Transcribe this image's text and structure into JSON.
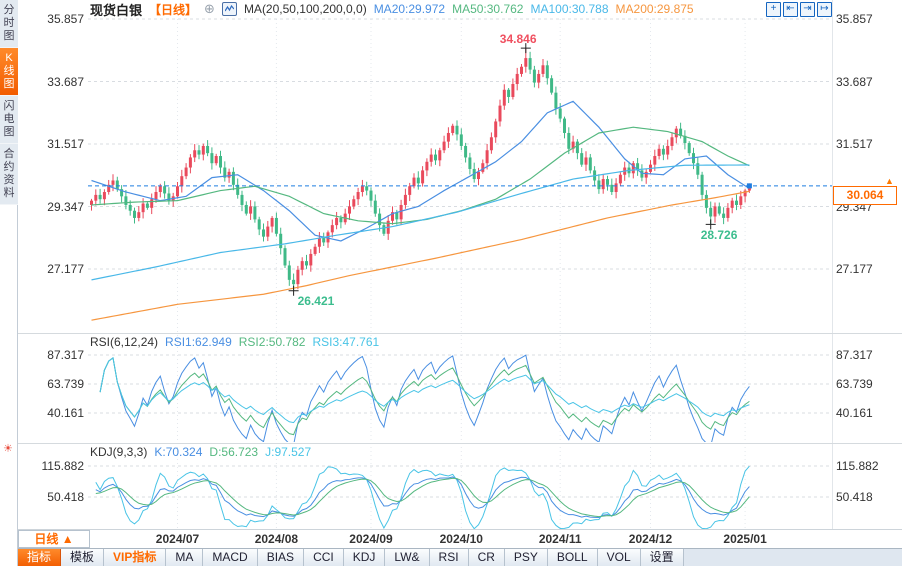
{
  "sidebar": {
    "tabs": [
      {
        "label": "分时图",
        "active": false
      },
      {
        "label": "K线图",
        "active": true
      },
      {
        "label": "闪电图",
        "active": false
      },
      {
        "label": "合约资料",
        "active": false
      }
    ],
    "sun_icon": "☀"
  },
  "header": {
    "symbol": "现货白银",
    "period": "【日线】",
    "add_icon": "⊕",
    "ma_setting": "MA(20,50,100,200,0,0)",
    "ma_values": [
      {
        "label": "MA20:29.972",
        "color": "#4a8fe2"
      },
      {
        "label": "MA50:30.762",
        "color": "#55b880"
      },
      {
        "label": "MA100:30.788",
        "color": "#49b8e8"
      },
      {
        "label": "MA200:29.875",
        "color": "#f6963f"
      }
    ],
    "tool_icons": {
      "crosshair": "+",
      "compress_left": "⇤",
      "compress_right": "⇥",
      "pan_right": "↦"
    }
  },
  "rsi_header": {
    "title": "RSI(6,12,24)",
    "values": [
      {
        "label": "RSI1:62.949",
        "color": "#4a8fe2"
      },
      {
        "label": "RSI2:50.782",
        "color": "#55b880"
      },
      {
        "label": "RSI3:47.761",
        "color": "#49c4e6"
      }
    ]
  },
  "kdj_header": {
    "title": "KDJ(9,3,3)",
    "values": [
      {
        "label": "K:70.324",
        "color": "#4a8fe2"
      },
      {
        "label": "D:56.723",
        "color": "#55b880"
      },
      {
        "label": "J:97.527",
        "color": "#49c4e6"
      }
    ]
  },
  "bottom": {
    "period_button": "日线 ▲",
    "tabs": [
      {
        "label": "指标"
      },
      {
        "label": "模板"
      },
      {
        "label": "VIP指标"
      },
      {
        "label": "MA"
      },
      {
        "label": "MACD"
      },
      {
        "label": "BIAS"
      },
      {
        "label": "CCI"
      },
      {
        "label": "KDJ"
      },
      {
        "label": "LW&"
      },
      {
        "label": "RSI"
      },
      {
        "label": "CR"
      },
      {
        "label": "PSY"
      },
      {
        "label": "BOLL"
      },
      {
        "label": "VOL"
      },
      {
        "label": "设置"
      }
    ]
  },
  "chart_data": {
    "type": "candlestick",
    "title": "现货白银 日线",
    "current_price": 30.064,
    "current_price_label": "30.064",
    "y_axis": {
      "main": [
        "35.857",
        "33.687",
        "31.517",
        "29.347",
        "27.177"
      ],
      "rsi": [
        "87.317",
        "63.739",
        "40.161"
      ],
      "kdj": [
        "115.882",
        "50.418"
      ]
    },
    "x_months": [
      {
        "label": "2024/07",
        "bar": 20
      },
      {
        "label": "2024/08",
        "bar": 43
      },
      {
        "label": "2024/09",
        "bar": 65
      },
      {
        "label": "2024/10",
        "bar": 86
      },
      {
        "label": "2024/11",
        "bar": 109
      },
      {
        "label": "2024/12",
        "bar": 130
      },
      {
        "label": "2025/01",
        "bar": 152
      }
    ],
    "candles": {
      "first_open": 29.4,
      "closes": [
        29.55,
        29.75,
        29.6,
        29.85,
        30.1,
        30.25,
        29.95,
        29.7,
        29.4,
        29.2,
        28.95,
        29.15,
        29.45,
        29.3,
        29.6,
        29.85,
        30.05,
        29.8,
        29.55,
        29.7,
        30.05,
        30.4,
        30.7,
        31.05,
        31.3,
        31.15,
        31.45,
        31.2,
        30.85,
        31.1,
        30.7,
        30.35,
        30.55,
        30.1,
        29.75,
        29.4,
        29.1,
        29.35,
        28.9,
        28.55,
        28.3,
        28.65,
        28.95,
        28.4,
        27.9,
        27.3,
        26.8,
        26.65,
        27.15,
        27.45,
        27.3,
        27.7,
        27.95,
        28.25,
        28.1,
        28.45,
        28.7,
        28.95,
        28.8,
        29.1,
        29.35,
        29.6,
        29.85,
        30.05,
        29.9,
        29.55,
        29.1,
        28.7,
        28.4,
        28.85,
        29.15,
        28.9,
        29.4,
        29.75,
        30.05,
        30.35,
        30.15,
        30.6,
        30.9,
        31.15,
        30.95,
        31.3,
        31.6,
        31.9,
        32.15,
        31.85,
        31.45,
        31.05,
        30.65,
        30.3,
        30.55,
        30.85,
        31.3,
        31.75,
        32.3,
        32.85,
        33.4,
        33.15,
        33.6,
        33.95,
        34.2,
        34.5,
        34.1,
        33.65,
        33.95,
        34.25,
        33.8,
        33.3,
        32.75,
        32.4,
        31.9,
        31.35,
        31.6,
        31.2,
        30.8,
        31.05,
        30.6,
        30.25,
        29.95,
        30.3,
        30.1,
        29.85,
        30.15,
        30.45,
        30.7,
        30.5,
        30.85,
        30.6,
        30.35,
        30.55,
        30.8,
        31.1,
        31.35,
        31.15,
        31.45,
        31.75,
        32.05,
        31.8,
        31.55,
        31.2,
        30.85,
        30.45,
        29.75,
        29.3,
        29.0,
        29.35,
        29.1,
        28.95,
        29.3,
        29.55,
        29.4,
        29.7,
        29.9,
        30.064
      ],
      "overrides": {
        "47": {
          "low": 26.421
        },
        "101": {
          "high": 34.846
        },
        "144": {
          "low": 28.726
        },
        "153": {
          "high": 30.15
        }
      }
    },
    "ma_lines": [
      {
        "name": "MA20",
        "color": "#4a8fe2",
        "anchors": [
          [
            0,
            30.25
          ],
          [
            8,
            29.85
          ],
          [
            16,
            29.55
          ],
          [
            22,
            29.7
          ],
          [
            28,
            30.35
          ],
          [
            34,
            30.45
          ],
          [
            40,
            29.9
          ],
          [
            46,
            29.2
          ],
          [
            52,
            28.35
          ],
          [
            58,
            28.15
          ],
          [
            64,
            28.6
          ],
          [
            70,
            29.1
          ],
          [
            76,
            29.35
          ],
          [
            82,
            29.9
          ],
          [
            88,
            30.4
          ],
          [
            94,
            30.9
          ],
          [
            100,
            31.6
          ],
          [
            106,
            32.6
          ],
          [
            112,
            33.0
          ],
          [
            118,
            32.1
          ],
          [
            124,
            31.0
          ],
          [
            128,
            30.5
          ],
          [
            133,
            30.45
          ],
          [
            138,
            31.0
          ],
          [
            143,
            31.1
          ],
          [
            148,
            30.45
          ],
          [
            153,
            29.972
          ]
        ]
      },
      {
        "name": "MA50",
        "color": "#55b880",
        "anchors": [
          [
            0,
            29.4
          ],
          [
            10,
            29.5
          ],
          [
            20,
            29.55
          ],
          [
            30,
            29.9
          ],
          [
            38,
            30.05
          ],
          [
            46,
            29.7
          ],
          [
            54,
            29.1
          ],
          [
            62,
            28.85
          ],
          [
            70,
            28.75
          ],
          [
            78,
            28.9
          ],
          [
            86,
            29.2
          ],
          [
            94,
            29.6
          ],
          [
            102,
            30.3
          ],
          [
            110,
            31.2
          ],
          [
            118,
            31.9
          ],
          [
            126,
            32.1
          ],
          [
            134,
            31.95
          ],
          [
            142,
            31.6
          ],
          [
            148,
            31.1
          ],
          [
            153,
            30.762
          ]
        ]
      },
      {
        "name": "MA100",
        "color": "#49b8e8",
        "anchors": [
          [
            0,
            26.8
          ],
          [
            15,
            27.25
          ],
          [
            30,
            27.75
          ],
          [
            45,
            28.05
          ],
          [
            57,
            28.35
          ],
          [
            70,
            28.65
          ],
          [
            85,
            29.15
          ],
          [
            100,
            29.8
          ],
          [
            112,
            30.3
          ],
          [
            125,
            30.6
          ],
          [
            138,
            30.78
          ],
          [
            153,
            30.788
          ]
        ]
      },
      {
        "name": "MA200",
        "color": "#f6963f",
        "anchors": [
          [
            0,
            25.4
          ],
          [
            20,
            25.95
          ],
          [
            40,
            26.3
          ],
          [
            50,
            26.6
          ],
          [
            60,
            26.95
          ],
          [
            80,
            27.55
          ],
          [
            100,
            28.2
          ],
          [
            120,
            28.95
          ],
          [
            135,
            29.4
          ],
          [
            145,
            29.65
          ],
          [
            153,
            29.875
          ]
        ]
      }
    ],
    "indicators": {
      "rsi": {
        "periods": [
          6,
          12,
          24
        ],
        "colors": [
          "#4a8fe2",
          "#55b880",
          "#49c4e6"
        ]
      },
      "kdj": {
        "params": [
          9,
          3,
          3
        ],
        "colors": [
          "#4a8fe2",
          "#55b880",
          "#49c4e6"
        ]
      }
    },
    "annotations": [
      {
        "text": "34.846",
        "bar": 101,
        "value": 34.846,
        "color": "#f05060",
        "placement": "above"
      },
      {
        "text": "26.421",
        "bar": 47,
        "value": 26.421,
        "color": "#3cbd8e",
        "placement": "below-right"
      },
      {
        "text": "28.726",
        "bar": 144,
        "value": 28.726,
        "color": "#3cbd8e",
        "placement": "below"
      }
    ],
    "colors": {
      "up": "#e94a5c",
      "down": "#3fb987",
      "price_line": "#1f7de0",
      "accent": "#ff6a00",
      "grid": "#d8dce1",
      "vgrid": "#e4e8ed"
    }
  }
}
